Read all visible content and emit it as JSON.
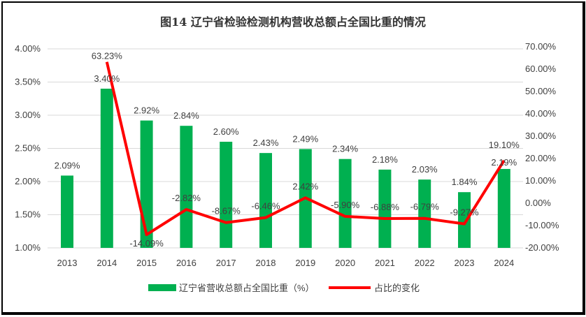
{
  "chart_data": {
    "type": "bar+line",
    "title": "图14 辽宁省检验检测机构营收总额占全国比重的情况",
    "categories": [
      "2013",
      "2014",
      "2015",
      "2016",
      "2017",
      "2018",
      "2019",
      "2020",
      "2021",
      "2022",
      "2023",
      "2024"
    ],
    "series": [
      {
        "name": "辽宁省营收总额占全国比重（%）",
        "type": "bar",
        "axis": "left",
        "color": "#00b050",
        "values": [
          2.09,
          3.4,
          2.92,
          2.84,
          2.6,
          2.43,
          2.49,
          2.34,
          2.18,
          2.03,
          1.84,
          2.19
        ],
        "labels": [
          "2.09%",
          "3.40%",
          "2.92%",
          "2.84%",
          "2.60%",
          "2.43%",
          "2.49%",
          "2.34%",
          "2.18%",
          "2.03%",
          "1.84%",
          "2.19%"
        ]
      },
      {
        "name": "占比的变化",
        "type": "line",
        "axis": "right",
        "color": "#ff0000",
        "values": [
          null,
          63.23,
          -14.09,
          -2.82,
          -8.67,
          -6.46,
          2.42,
          -5.9,
          -6.88,
          -6.79,
          -9.27,
          19.1
        ],
        "labels": [
          "",
          "63.23%",
          "-14.09%",
          "-2.82%",
          "-8.67%",
          "-6.46%",
          "2.42%",
          "-5.90%",
          "-6.88%",
          "-6.79%",
          "-9.27%",
          "19.10%"
        ]
      }
    ],
    "left_axis": {
      "min": 1.0,
      "max": 4.0,
      "ticks": [
        "1.00%",
        "1.50%",
        "2.00%",
        "2.50%",
        "3.00%",
        "3.50%",
        "4.00%"
      ]
    },
    "right_axis": {
      "min": -20,
      "max": 70,
      "ticks": [
        "-20.00%",
        "-10.00%",
        "0.00%",
        "10.00%",
        "20.00%",
        "30.00%",
        "40.00%",
        "50.00%",
        "60.00%",
        "70.00%"
      ]
    },
    "grid": true,
    "legend": "bottom"
  }
}
